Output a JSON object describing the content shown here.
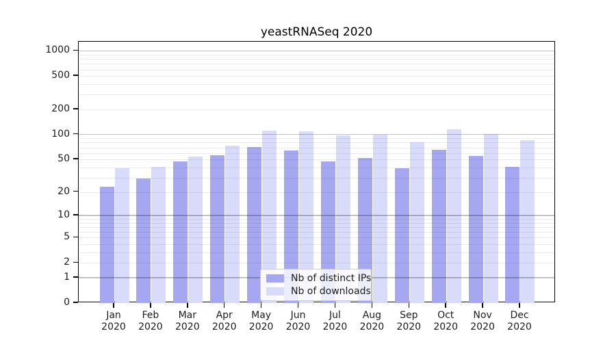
{
  "title": "yeastRNASeq 2020",
  "colors": {
    "distinct_ips": "#a5a8f1",
    "downloads": "#d9dbfa",
    "spine": "#000000",
    "major_grid": "#c3c3c3",
    "minor_grid": "#ececec"
  },
  "legend": {
    "items": [
      {
        "label": "Nb of distinct IPs",
        "series_key": "distinct_ips"
      },
      {
        "label": "Nb of downloads",
        "series_key": "downloads"
      }
    ]
  },
  "y_axis": {
    "tick_labels": [
      "0",
      "1",
      "2",
      "5",
      "10",
      "20",
      "50",
      "100",
      "200",
      "500",
      "1000"
    ],
    "tick_values": [
      0,
      1,
      2,
      5,
      10,
      20,
      50,
      100,
      200,
      500,
      1000
    ]
  },
  "x_axis": {
    "months": [
      "Jan",
      "Feb",
      "Mar",
      "Apr",
      "May",
      "Jun",
      "Jul",
      "Aug",
      "Sep",
      "Oct",
      "Nov",
      "Dec"
    ],
    "year": "2020"
  },
  "chart_data": {
    "type": "bar",
    "title": "yeastRNASeq 2020",
    "categories": [
      "Jan 2020",
      "Feb 2020",
      "Mar 2020",
      "Apr 2020",
      "May 2020",
      "Jun 2020",
      "Jul 2020",
      "Aug 2020",
      "Sep 2020",
      "Oct 2020",
      "Nov 2020",
      "Dec 2020"
    ],
    "series": [
      {
        "name": "Nb of distinct IPs",
        "values": [
          23,
          29,
          47,
          56,
          71,
          64,
          47,
          52,
          39,
          65,
          55,
          41
        ]
      },
      {
        "name": "Nb of downloads",
        "values": [
          39,
          41,
          54,
          74,
          112,
          110,
          98,
          99,
          81,
          115,
          101,
          86
        ]
      }
    ],
    "xlabel": "",
    "ylabel": "",
    "y_scale": "log1p",
    "y_ticks": [
      0,
      1,
      2,
      5,
      10,
      20,
      50,
      100,
      200,
      500,
      1000
    ],
    "ylim": [
      0,
      1300
    ],
    "grid": "horizontal, major (1,10,100,1000) darker + log minors lighter",
    "legend_position": "lower center"
  }
}
